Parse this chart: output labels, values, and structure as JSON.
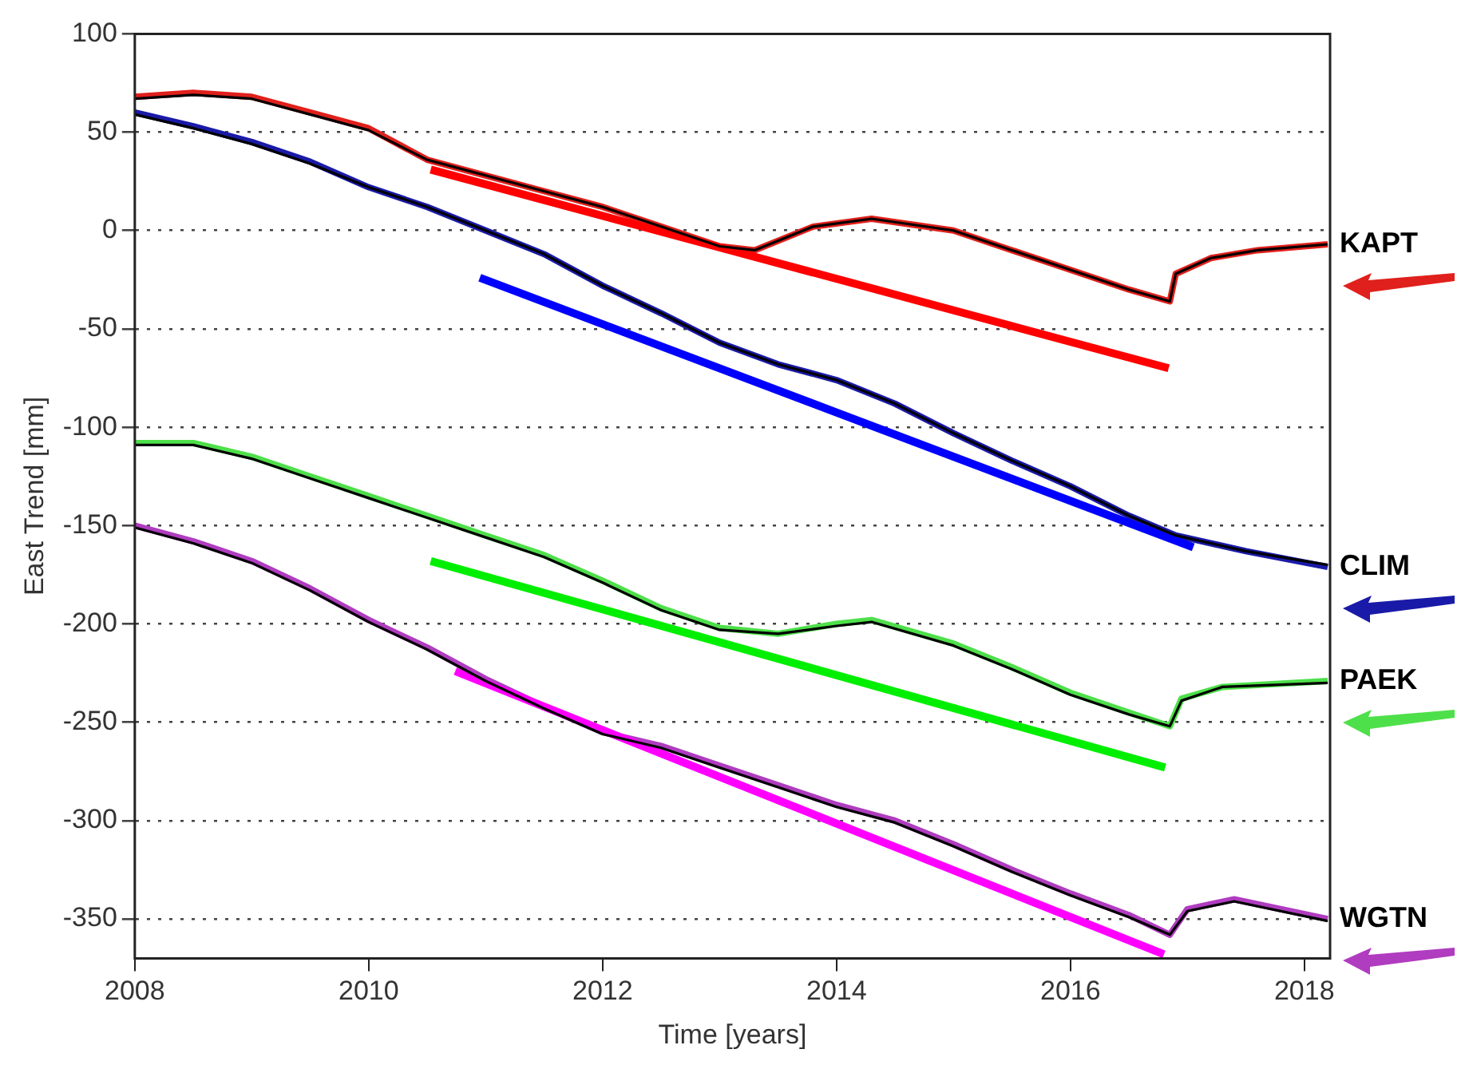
{
  "chart_data": {
    "type": "line",
    "xlabel": "Time [years]",
    "ylabel": "East Trend [mm]",
    "xlim": [
      2008,
      2018.22
    ],
    "xticks": [
      2008,
      2010,
      2012,
      2014,
      2016,
      2018
    ],
    "ylim": [
      -370,
      100
    ],
    "yticks": [
      100,
      50,
      0,
      -50,
      -100,
      -150,
      -200,
      -250,
      -300,
      -350
    ],
    "grid": "y",
    "legend": false,
    "marker": "none",
    "line_style": "solid",
    "series": [
      {
        "name": "KAPT",
        "color": "#e0201c",
        "x": [
          2008,
          2008.5,
          2009,
          2009.5,
          2010,
          2010.5,
          2011,
          2011.5,
          2012,
          2012.5,
          2013,
          2013.3,
          2013.8,
          2014.3,
          2015,
          2015.5,
          2016,
          2016.5,
          2016.85,
          2016.9,
          2017.2,
          2017.6,
          2018.2
        ],
        "values": [
          68,
          70,
          68,
          60,
          52,
          36,
          28,
          20,
          12,
          2,
          -8,
          -10,
          2,
          6,
          0,
          -10,
          -20,
          -30,
          -36,
          -22,
          -14,
          -10,
          -7
        ]
      },
      {
        "name": "CLIM",
        "color": "#1a1aa8",
        "x": [
          2008,
          2008.5,
          2009,
          2009.5,
          2010,
          2010.5,
          2011,
          2011.5,
          2012,
          2012.5,
          2013,
          2013.5,
          2014,
          2014.5,
          2015,
          2015.5,
          2016,
          2016.5,
          2016.9,
          2017.5,
          2018.2
        ],
        "values": [
          60,
          53,
          45,
          35,
          22,
          12,
          0,
          -12,
          -28,
          -42,
          -57,
          -68,
          -76,
          -88,
          -103,
          -117,
          -130,
          -145,
          -155,
          -163,
          -171
        ]
      },
      {
        "name": "PAEK",
        "color": "#4ee04a",
        "x": [
          2008,
          2008.5,
          2009,
          2009.5,
          2010,
          2010.5,
          2011,
          2011.5,
          2012,
          2012.5,
          2013,
          2013.5,
          2014,
          2014.3,
          2015,
          2015.5,
          2016,
          2016.5,
          2016.85,
          2016.95,
          2017.3,
          2018.2
        ],
        "values": [
          -108,
          -108,
          -115,
          -125,
          -135,
          -145,
          -155,
          -165,
          -178,
          -192,
          -202,
          -205,
          -200,
          -198,
          -210,
          -222,
          -235,
          -245,
          -252,
          -238,
          -232,
          -229
        ]
      },
      {
        "name": "WGTN",
        "color": "#b03cc0",
        "x": [
          2008,
          2008.5,
          2009,
          2009.5,
          2010,
          2010.5,
          2011,
          2011.5,
          2012,
          2012.5,
          2013,
          2013.5,
          2014,
          2014.5,
          2015,
          2015.5,
          2016,
          2016.5,
          2016.85,
          2017,
          2017.4,
          2018.2
        ],
        "values": [
          -150,
          -158,
          -168,
          -182,
          -198,
          -212,
          -228,
          -242,
          -255,
          -262,
          -272,
          -282,
          -292,
          -300,
          -312,
          -325,
          -337,
          -348,
          -358,
          -345,
          -340,
          -350
        ]
      },
      {
        "color": "#000000",
        "x": [
          2008,
          2008.5,
          2009,
          2009.5,
          2010,
          2010.5,
          2011,
          2011.5,
          2012,
          2012.5,
          2013,
          2013.3,
          2013.8,
          2014.3,
          2015,
          2015.5,
          2016,
          2016.5,
          2016.85,
          2016.9,
          2017.2,
          2017.6,
          2018.2
        ],
        "values": [
          67,
          69,
          67,
          59,
          51,
          36,
          28,
          20,
          12,
          2,
          -8,
          -10,
          2,
          6,
          0,
          -10,
          -20,
          -30,
          -36,
          -22,
          -14,
          -10,
          -7
        ]
      },
      {
        "color": "#000000",
        "x": [
          2008,
          2008.5,
          2009,
          2009.5,
          2010,
          2010.5,
          2011,
          2011.5,
          2012,
          2012.5,
          2013,
          2013.5,
          2014,
          2014.5,
          2015,
          2015.5,
          2016,
          2016.5,
          2016.9,
          2017.5,
          2018.2
        ],
        "values": [
          59,
          52,
          44,
          34,
          22,
          12,
          0,
          -12,
          -28,
          -42,
          -57,
          -68,
          -76,
          -88,
          -103,
          -117,
          -130,
          -145,
          -155,
          -163,
          -170
        ]
      },
      {
        "color": "#000000",
        "x": [
          2008,
          2008.5,
          2009,
          2009.5,
          2010,
          2010.5,
          2011,
          2011.5,
          2012,
          2012.5,
          2013,
          2013.5,
          2014,
          2014.3,
          2015,
          2015.5,
          2016,
          2016.5,
          2016.85,
          2016.95,
          2017.3,
          2018.2
        ],
        "values": [
          -109,
          -109,
          -116,
          -126,
          -136,
          -146,
          -156,
          -166,
          -179,
          -193,
          -203,
          -205,
          -201,
          -199,
          -211,
          -223,
          -236,
          -246,
          -252,
          -239,
          -232,
          -230
        ]
      },
      {
        "color": "#000000",
        "x": [
          2008,
          2008.5,
          2009,
          2009.5,
          2010,
          2010.5,
          2011,
          2011.5,
          2012,
          2012.5,
          2013,
          2013.5,
          2014,
          2014.5,
          2015,
          2015.5,
          2016,
          2016.5,
          2016.85,
          2017,
          2017.4,
          2018.2
        ],
        "values": [
          -151,
          -159,
          -169,
          -183,
          -199,
          -213,
          -229,
          -243,
          -256,
          -263,
          -273,
          -283,
          -293,
          -301,
          -313,
          -326,
          -338,
          -349,
          -358,
          -346,
          -341,
          -351
        ]
      },
      {
        "color": "#ff0000",
        "x": [
          2010.53,
          2016.84
        ],
        "values": [
          31,
          -70
        ]
      },
      {
        "color": "#0000ff",
        "x": [
          2010.95,
          2017.05
        ],
        "values": [
          -24,
          -161
        ]
      },
      {
        "color": "#00ee00",
        "x": [
          2010.53,
          2016.81
        ],
        "values": [
          -168,
          -273
        ]
      },
      {
        "color": "#ff00ff",
        "x": [
          2010.74,
          2016.8
        ],
        "values": [
          -224,
          -368
        ]
      }
    ]
  }
}
